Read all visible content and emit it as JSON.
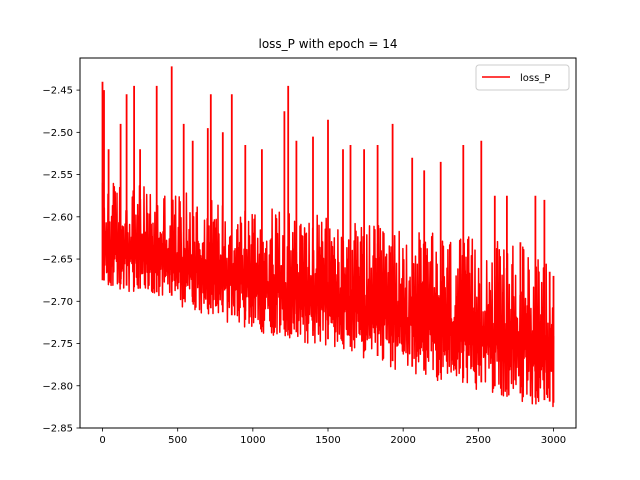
{
  "chart_data": {
    "type": "line",
    "title": "loss_P with epoch = 14",
    "xlabel": "",
    "ylabel": "",
    "xlim": [
      -150,
      3150
    ],
    "ylim": [
      -2.85,
      -2.412
    ],
    "xticks": [
      0,
      500,
      1000,
      1500,
      2000,
      2500,
      3000
    ],
    "xtick_labels": [
      "0",
      "500",
      "1000",
      "1500",
      "2000",
      "2500",
      "3000"
    ],
    "yticks": [
      -2.85,
      -2.8,
      -2.75,
      -2.7,
      -2.65,
      -2.6,
      -2.55,
      -2.5,
      -2.45
    ],
    "ytick_labels": [
      "−2.85",
      "−2.80",
      "−2.75",
      "−2.70",
      "−2.65",
      "−2.60",
      "−2.55",
      "−2.50",
      "−2.45"
    ],
    "grid": false,
    "legend_position": "top-right",
    "series": [
      {
        "name": "loss_P",
        "color": "#ff0000",
        "x_range": [
          0,
          3000
        ],
        "lower_envelope": {
          "x": [
            0,
            500,
            1000,
            1500,
            2000,
            2500,
            3000
          ],
          "y": [
            -2.685,
            -2.705,
            -2.735,
            -2.755,
            -2.785,
            -2.805,
            -2.83
          ]
        },
        "upper_typical": {
          "x": [
            0,
            500,
            1000,
            1500,
            2000,
            2500,
            3000
          ],
          "y": [
            -2.555,
            -2.57,
            -2.585,
            -2.6,
            -2.615,
            -2.625,
            -2.64
          ]
        },
        "spikes": [
          {
            "x": 0,
            "y": -2.44
          },
          {
            "x": 10,
            "y": -2.45
          },
          {
            "x": 40,
            "y": -2.52
          },
          {
            "x": 120,
            "y": -2.49
          },
          {
            "x": 160,
            "y": -2.455
          },
          {
            "x": 210,
            "y": -2.445
          },
          {
            "x": 250,
            "y": -2.52
          },
          {
            "x": 360,
            "y": -2.445
          },
          {
            "x": 460,
            "y": -2.422
          },
          {
            "x": 540,
            "y": -2.49
          },
          {
            "x": 600,
            "y": -2.51
          },
          {
            "x": 700,
            "y": -2.495
          },
          {
            "x": 720,
            "y": -2.455
          },
          {
            "x": 800,
            "y": -2.5
          },
          {
            "x": 860,
            "y": -2.455
          },
          {
            "x": 950,
            "y": -2.515
          },
          {
            "x": 1060,
            "y": -2.52
          },
          {
            "x": 1210,
            "y": -2.475
          },
          {
            "x": 1235,
            "y": -2.445
          },
          {
            "x": 1290,
            "y": -2.51
          },
          {
            "x": 1400,
            "y": -2.505
          },
          {
            "x": 1500,
            "y": -2.485
          },
          {
            "x": 1600,
            "y": -2.52
          },
          {
            "x": 1650,
            "y": -2.515
          },
          {
            "x": 1740,
            "y": -2.52
          },
          {
            "x": 1830,
            "y": -2.515
          },
          {
            "x": 1930,
            "y": -2.49
          },
          {
            "x": 2060,
            "y": -2.53
          },
          {
            "x": 2140,
            "y": -2.545
          },
          {
            "x": 2250,
            "y": -2.535
          },
          {
            "x": 2400,
            "y": -2.515
          },
          {
            "x": 2520,
            "y": -2.51
          },
          {
            "x": 2610,
            "y": -2.575
          },
          {
            "x": 2690,
            "y": -2.575
          },
          {
            "x": 2780,
            "y": -2.63
          },
          {
            "x": 2880,
            "y": -2.575
          },
          {
            "x": 2940,
            "y": -2.58
          },
          {
            "x": 2975,
            "y": -2.665
          },
          {
            "x": 3000,
            "y": -2.67
          }
        ]
      }
    ]
  }
}
